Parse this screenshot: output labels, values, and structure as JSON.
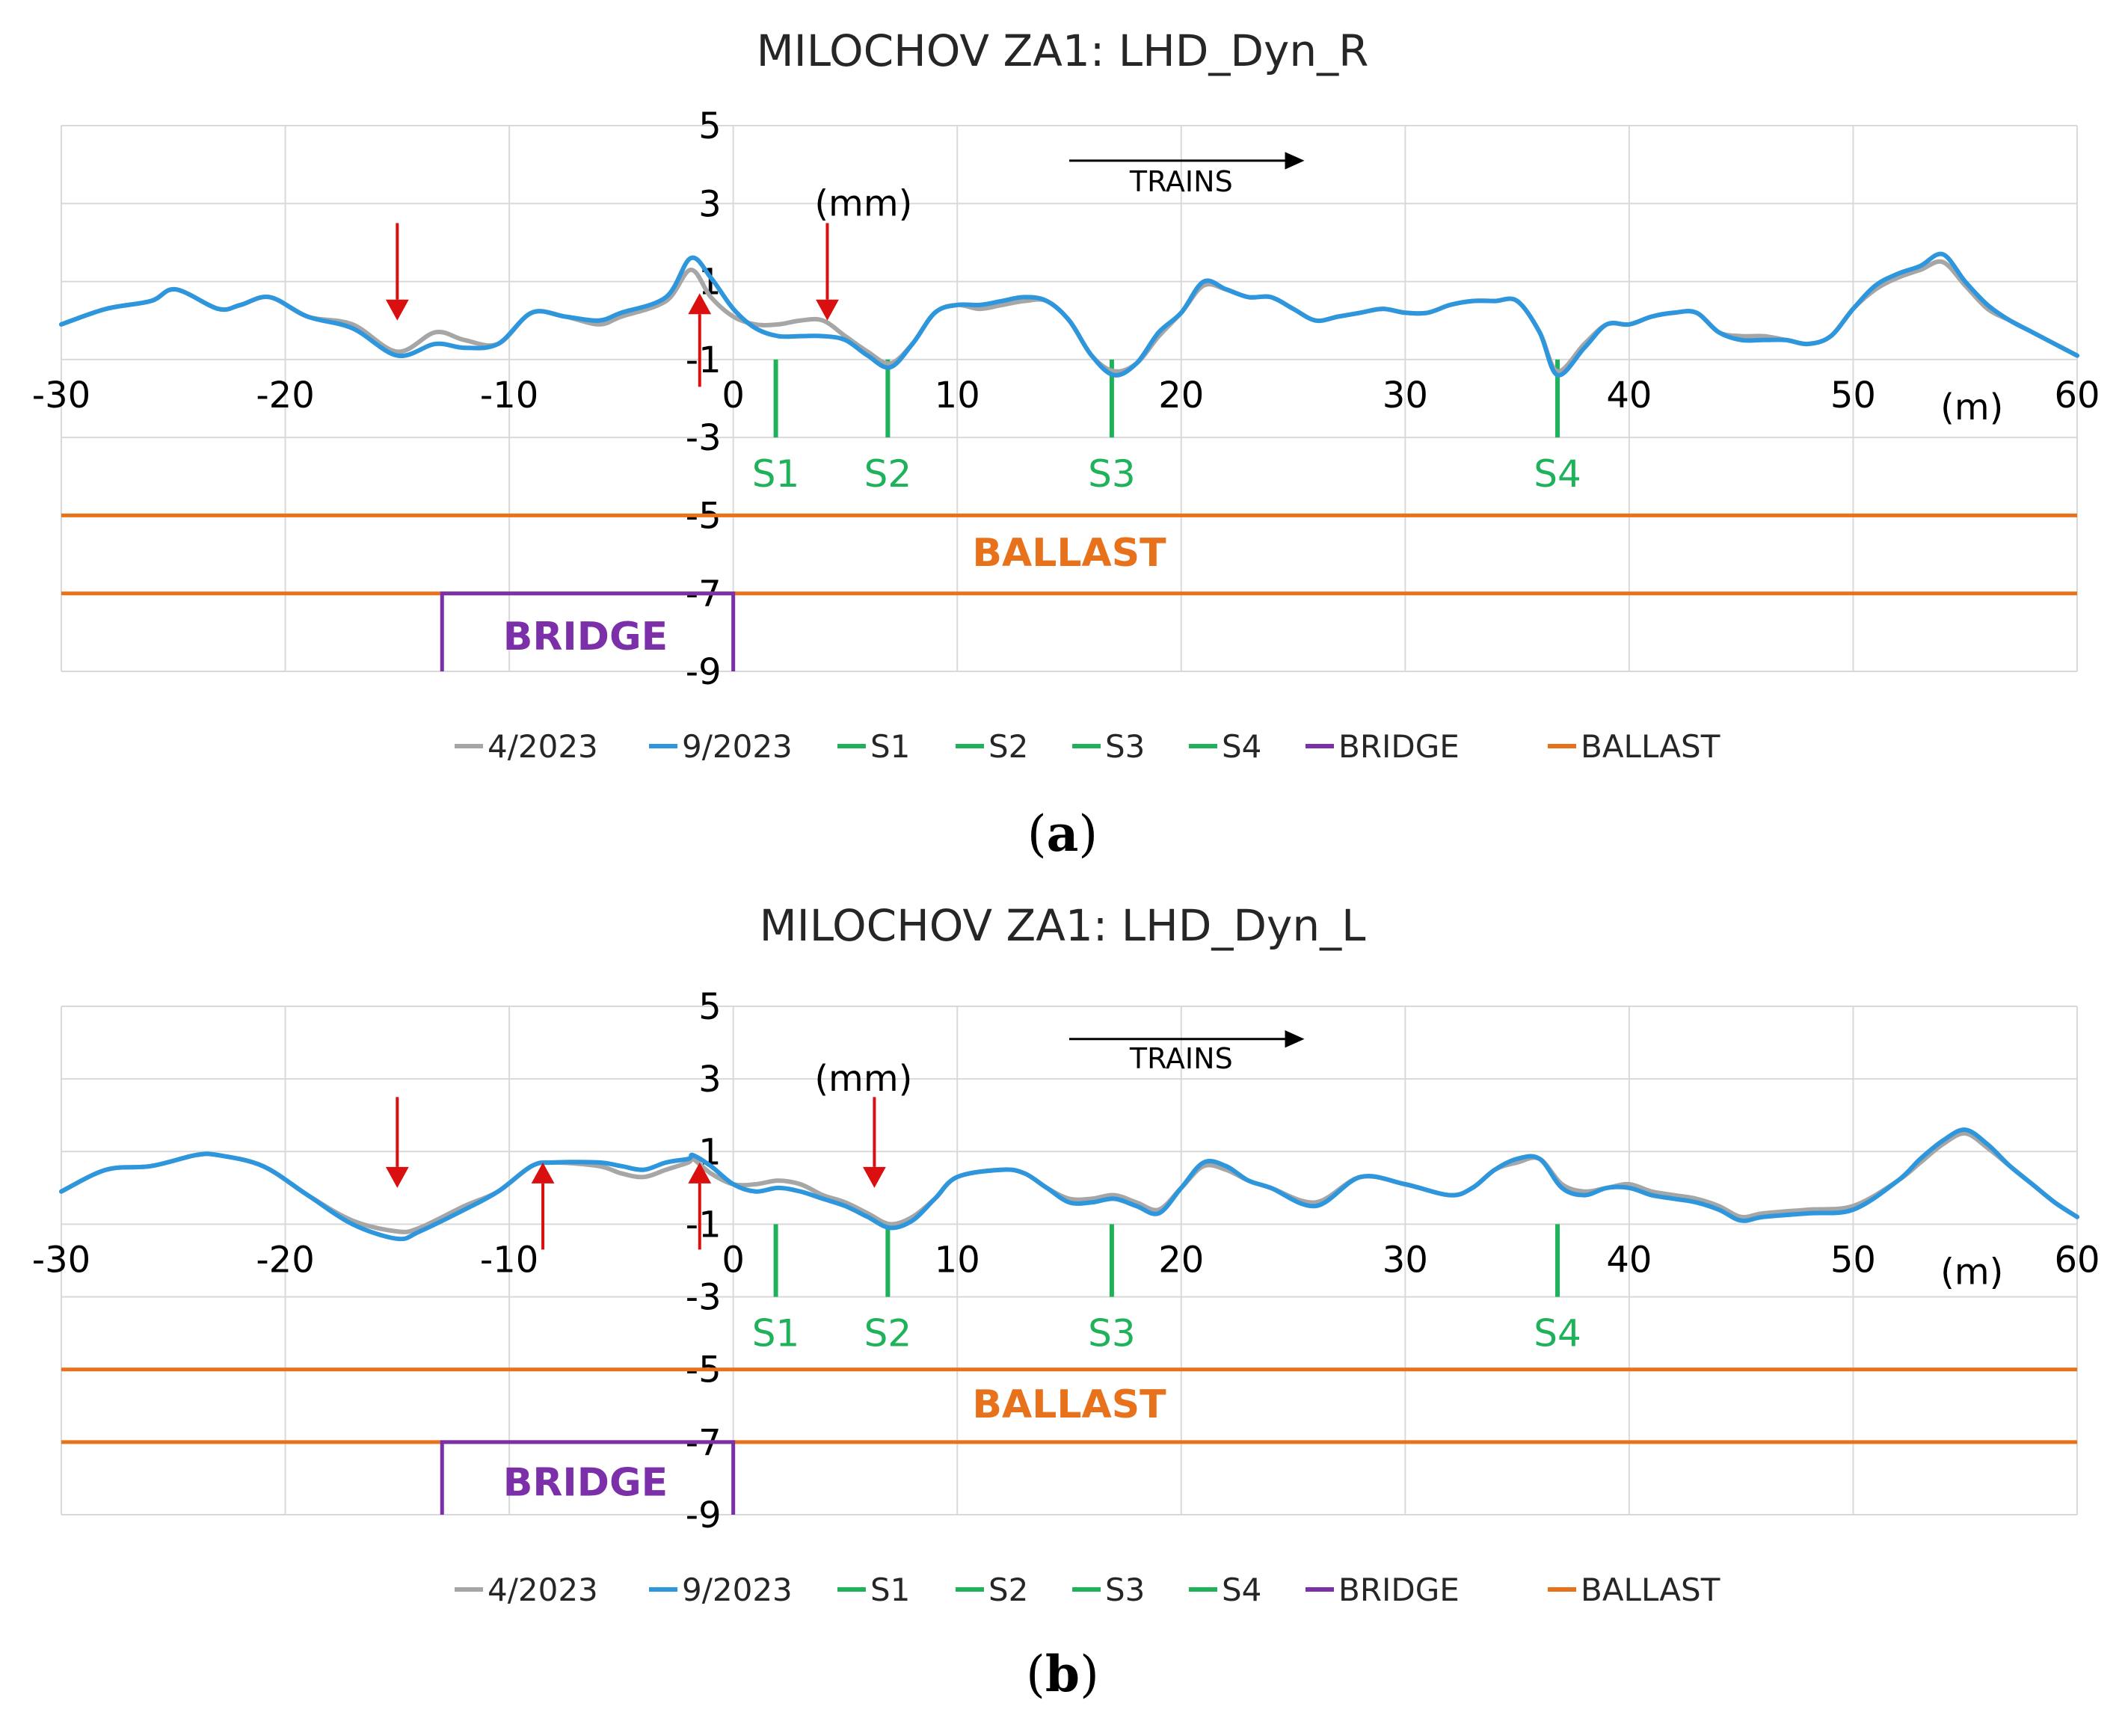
{
  "colors": {
    "line_2023_04": "#a6a6a6",
    "line_2023_09": "#2e96dc",
    "sensor": "#1fb25a",
    "bridge": "#7b2fa8",
    "ballast": "#e8711c",
    "arrow": "#d9100f",
    "grid": "#d9d9d9"
  },
  "chart_data": [
    {
      "type": "line",
      "panel_label": "a",
      "title": "MILOCHOV ZA1: LHD_Dyn_R",
      "xlabel": "(m)",
      "ylabel": "(mm)",
      "xlim": [
        -30,
        60
      ],
      "ylim": [
        -9,
        5
      ],
      "x_ticks": [
        -30,
        -20,
        -10,
        0,
        10,
        20,
        30,
        40,
        50,
        60
      ],
      "y_ticks": [
        5,
        3,
        1,
        -1,
        -3,
        -5,
        -7,
        -9
      ],
      "direction_label": "TRAINS",
      "series": [
        {
          "name": "4/2023",
          "x": [
            -30,
            -28,
            -26,
            -24.9,
            -23,
            -22,
            -20.7,
            -19,
            -17,
            -15,
            -13.3,
            -12,
            -10.5,
            -9,
            -7.5,
            -6,
            -5,
            -3,
            -1.9,
            -1,
            0,
            1,
            2,
            3,
            4,
            5,
            6,
            7,
            8,
            9,
            10,
            11,
            12,
            13,
            14,
            15,
            16,
            17,
            18,
            19,
            20,
            21,
            22,
            23,
            24,
            25,
            26,
            27,
            28,
            29,
            30,
            31,
            32,
            33,
            34,
            35,
            36,
            36.8,
            38,
            39,
            40,
            41,
            42,
            43,
            44,
            45,
            46,
            47,
            48,
            49,
            50,
            51,
            52,
            53,
            54,
            55,
            56,
            57,
            58,
            59,
            60
          ],
          "y": [
            -0.1,
            0.3,
            0.5,
            0.8,
            0.3,
            0.4,
            0.6,
            0.1,
            -0.1,
            -0.8,
            -0.3,
            -0.5,
            -0.6,
            0.2,
            0.1,
            -0.1,
            0.1,
            0.5,
            1.3,
            0.6,
            0.1,
            -0.1,
            -0.1,
            0,
            0,
            -0.4,
            -0.8,
            -1.1,
            -0.6,
            0.2,
            0.4,
            0.3,
            0.4,
            0.5,
            0.5,
            0,
            -0.9,
            -1.3,
            -1.1,
            -0.4,
            0.2,
            0.9,
            0.8,
            0.6,
            0.6,
            0.3,
            0,
            0.1,
            0.2,
            0.3,
            0.2,
            0.2,
            0.4,
            0.5,
            0.5,
            0.5,
            -0.3,
            -1.3,
            -0.6,
            -0.1,
            -0.1,
            0.1,
            0.2,
            0.2,
            -0.3,
            -0.4,
            -0.4,
            -0.5,
            -0.6,
            -0.4,
            0.3,
            0.8,
            1.1,
            1.3,
            1.5,
            0.9,
            0.3,
            0,
            -0.3,
            -0.6,
            -0.9
          ]
        },
        {
          "name": "9/2023",
          "x": [
            -30,
            -28,
            -26,
            -24.9,
            -23,
            -22,
            -20.7,
            -19,
            -17,
            -15,
            -13.3,
            -12,
            -10.5,
            -9,
            -7.5,
            -6,
            -5,
            -3,
            -1.9,
            -1,
            0,
            1,
            2,
            3,
            4,
            5,
            6,
            7,
            8,
            9,
            10,
            11,
            12,
            13,
            14,
            15,
            16,
            17,
            18,
            19,
            20,
            21,
            22,
            23,
            24,
            25,
            26,
            27,
            28,
            29,
            30,
            31,
            32,
            33,
            34,
            35,
            36,
            36.8,
            38,
            39,
            40,
            41,
            42,
            43,
            44,
            45,
            46,
            47,
            48,
            49,
            50,
            51,
            52,
            53,
            54,
            55,
            56,
            57,
            58,
            59,
            60
          ],
          "y": [
            -0.1,
            0.3,
            0.5,
            0.8,
            0.3,
            0.4,
            0.6,
            0.1,
            -0.2,
            -0.9,
            -0.6,
            -0.7,
            -0.6,
            0.2,
            0.1,
            0,
            0.2,
            0.6,
            1.6,
            1.1,
            0.3,
            -0.2,
            -0.4,
            -0.4,
            -0.4,
            -0.5,
            -0.9,
            -1.2,
            -0.6,
            0.2,
            0.4,
            0.4,
            0.5,
            0.6,
            0.5,
            0,
            -0.9,
            -1.4,
            -1.1,
            -0.3,
            0.2,
            1,
            0.8,
            0.6,
            0.6,
            0.3,
            0,
            0.1,
            0.2,
            0.3,
            0.2,
            0.2,
            0.4,
            0.5,
            0.5,
            0.5,
            -0.3,
            -1.4,
            -0.7,
            -0.1,
            -0.1,
            0.1,
            0.2,
            0.2,
            -0.3,
            -0.5,
            -0.5,
            -0.5,
            -0.6,
            -0.4,
            0.3,
            0.9,
            1.2,
            1.4,
            1.7,
            1,
            0.4,
            0,
            -0.3,
            -0.6,
            -0.9
          ]
        }
      ],
      "sensors": [
        {
          "name": "S1",
          "x": 1.9,
          "y_range": [
            -1,
            -3
          ]
        },
        {
          "name": "S2",
          "x": 6.9,
          "y_range": [
            -1,
            -3
          ]
        },
        {
          "name": "S3",
          "x": 16.9,
          "y_range": [
            -1,
            -3
          ]
        },
        {
          "name": "S4",
          "x": 36.8,
          "y_range": [
            -1,
            -3
          ]
        }
      ],
      "ballast": {
        "name": "BALLAST",
        "y_top": -5,
        "y_bottom": -7
      },
      "bridge": {
        "name": "BRIDGE",
        "x_start": -13,
        "x_end": 0,
        "y_top": -7,
        "y_bottom": -9
      },
      "arrows": [
        {
          "dir": "down",
          "x": -15
        },
        {
          "dir": "up",
          "x": -1.5
        },
        {
          "dir": "down",
          "x": 4.2
        }
      ],
      "legend": [
        "4/2023",
        "9/2023",
        "S1",
        "S2",
        "S3",
        "S4",
        "BRIDGE",
        "BALLAST"
      ]
    },
    {
      "type": "line",
      "panel_label": "b",
      "title": "MILOCHOV ZA1: LHD_Dyn_L",
      "xlabel": "(m)",
      "ylabel": "(mm)",
      "xlim": [
        -30,
        60
      ],
      "ylim": [
        -9,
        5
      ],
      "x_ticks": [
        -30,
        -20,
        -10,
        0,
        10,
        20,
        30,
        40,
        50,
        60
      ],
      "y_ticks": [
        5,
        3,
        1,
        -1,
        -3,
        -5,
        -7,
        -9
      ],
      "direction_label": "TRAINS",
      "series": [
        {
          "name": "4/2023",
          "x": [
            -30,
            -28,
            -26,
            -24,
            -23,
            -21,
            -19,
            -17,
            -15,
            -14,
            -12,
            -10.5,
            -9,
            -8,
            -6,
            -5,
            -4,
            -3,
            -2,
            -1.8,
            -1,
            0,
            1,
            2,
            3,
            4,
            5,
            6,
            7,
            8,
            9,
            10,
            12,
            13,
            14,
            15,
            16,
            17,
            18,
            19,
            20,
            21,
            22,
            23,
            24,
            26,
            28,
            30,
            32,
            33,
            34,
            35,
            36,
            37,
            38,
            39,
            40,
            41,
            42,
            43,
            44,
            45,
            46,
            48,
            50,
            52,
            53,
            54,
            55,
            56,
            57,
            58,
            59,
            60
          ],
          "y": [
            -0.1,
            0.5,
            0.6,
            0.9,
            0.9,
            0.6,
            -0.2,
            -0.9,
            -1.2,
            -1.1,
            -0.5,
            -0.1,
            0.6,
            0.7,
            0.6,
            0.4,
            0.3,
            0.5,
            0.7,
            0.8,
            0.4,
            0.1,
            0.1,
            0.2,
            0.1,
            -0.2,
            -0.4,
            -0.7,
            -1,
            -0.8,
            -0.3,
            0.3,
            0.5,
            0.4,
            0,
            -0.3,
            -0.3,
            -0.2,
            -0.4,
            -0.6,
            0,
            0.6,
            0.5,
            0.2,
            0,
            -0.4,
            0.3,
            0.1,
            -0.2,
            0,
            0.5,
            0.7,
            0.8,
            0.1,
            -0.1,
            0,
            0.1,
            -0.1,
            -0.2,
            -0.3,
            -0.5,
            -0.8,
            -0.7,
            -0.6,
            -0.5,
            0.2,
            0.7,
            1.2,
            1.5,
            1.1,
            0.6,
            0.1,
            -0.4,
            -0.8
          ]
        },
        {
          "name": "9/2023",
          "x": [
            -30,
            -28,
            -26,
            -24,
            -23,
            -21,
            -19,
            -17,
            -15,
            -14,
            -12,
            -10.5,
            -9,
            -8,
            -6,
            -5,
            -4,
            -3,
            -2,
            -1.8,
            -1,
            0,
            1,
            2,
            3,
            4,
            5,
            6,
            7,
            8,
            9,
            10,
            12,
            13,
            14,
            15,
            16,
            17,
            18,
            19,
            20,
            21,
            22,
            23,
            24,
            26,
            28,
            30,
            32,
            33,
            34,
            35,
            36,
            37,
            38,
            39,
            40,
            41,
            42,
            43,
            44,
            45,
            46,
            48,
            50,
            52,
            53,
            54,
            55,
            56,
            57,
            58,
            59,
            60
          ],
          "y": [
            -0.1,
            0.5,
            0.6,
            0.9,
            0.9,
            0.6,
            -0.2,
            -1,
            -1.4,
            -1.2,
            -0.6,
            -0.1,
            0.6,
            0.7,
            0.7,
            0.6,
            0.5,
            0.7,
            0.8,
            0.9,
            0.6,
            0.1,
            -0.1,
            0,
            -0.1,
            -0.3,
            -0.5,
            -0.8,
            -1.1,
            -0.9,
            -0.3,
            0.3,
            0.5,
            0.4,
            0,
            -0.4,
            -0.4,
            -0.3,
            -0.5,
            -0.7,
            0,
            0.7,
            0.6,
            0.2,
            0,
            -0.5,
            0.3,
            0.1,
            -0.2,
            0,
            0.5,
            0.8,
            0.8,
            0,
            -0.2,
            0,
            0,
            -0.2,
            -0.3,
            -0.4,
            -0.6,
            -0.9,
            -0.8,
            -0.7,
            -0.6,
            0.2,
            0.8,
            1.3,
            1.6,
            1.2,
            0.6,
            0.1,
            -0.4,
            -0.8
          ]
        }
      ],
      "sensors": [
        {
          "name": "S1",
          "x": 1.9,
          "y_range": [
            -1,
            -3
          ]
        },
        {
          "name": "S2",
          "x": 6.9,
          "y_range": [
            -1,
            -3
          ]
        },
        {
          "name": "S3",
          "x": 16.9,
          "y_range": [
            -1,
            -3
          ]
        },
        {
          "name": "S4",
          "x": 36.8,
          "y_range": [
            -1,
            -3
          ]
        }
      ],
      "ballast": {
        "name": "BALLAST",
        "y_top": -5,
        "y_bottom": -7
      },
      "bridge": {
        "name": "BRIDGE",
        "x_start": -13,
        "x_end": 0,
        "y_top": -7,
        "y_bottom": -9
      },
      "arrows": [
        {
          "dir": "down",
          "x": -15
        },
        {
          "dir": "up",
          "x": -8.5
        },
        {
          "dir": "up",
          "x": -1.5
        },
        {
          "dir": "down",
          "x": 6.3
        }
      ],
      "legend": [
        "4/2023",
        "9/2023",
        "S1",
        "S2",
        "S3",
        "S4",
        "BRIDGE",
        "BALLAST"
      ]
    }
  ]
}
